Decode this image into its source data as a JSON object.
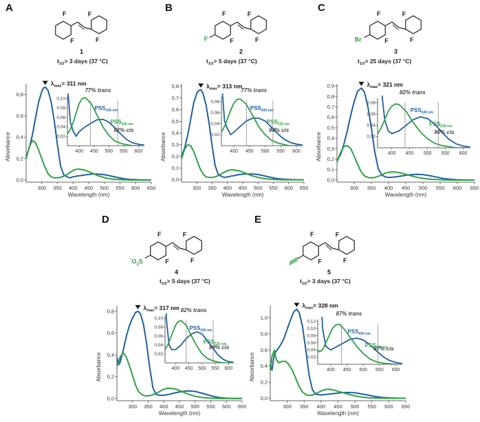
{
  "colors": {
    "blue": "#1f5f9e",
    "green": "#2ea043",
    "text": "#333333",
    "axis": "#333333"
  },
  "panels": [
    {
      "letter": "A",
      "number": "1",
      "halflife_prefix": "t",
      "halflife_sub": "1/2",
      "halflife_value": "> 3 days (37 °C)",
      "substituents": [],
      "lambda_label": "λ",
      "lambda_sub": "max",
      "lambda_value": "= 311 nm",
      "trans_text": "77% trans",
      "cis_text": "92% cis",
      "pss430": "PSS",
      "pss430_sub": "430 nm",
      "pss530": "PSS",
      "pss530_sub": "530 nm",
      "ylabel": "Absorbance",
      "xlabel": "Wavelength (nm)"
    },
    {
      "letter": "B",
      "number": "2",
      "halflife_prefix": "t",
      "halflife_sub": "1/2",
      "halflife_value": "> 5 days (37 °C)",
      "substituents": [
        "F"
      ],
      "lambda_label": "λ",
      "lambda_sub": "max",
      "lambda_value": "= 313 nm",
      "trans_text": "77% trans",
      "cis_text": "94% cis",
      "pss430": "PSS",
      "pss430_sub": "430 nm",
      "pss530": "PSS",
      "pss530_sub": "530 nm",
      "ylabel": "Absorbance",
      "xlabel": "Wavelength (nm)"
    },
    {
      "letter": "C",
      "number": "3",
      "halflife_prefix": "t",
      "halflife_sub": "1/2",
      "halflife_value": "> 25 days (37 °C)",
      "substituents": [
        "Br"
      ],
      "lambda_label": "λ",
      "lambda_sub": "max",
      "lambda_value": "= 321 nm",
      "trans_text": "82% trans",
      "cis_text": "90% cis",
      "pss430": "PSS",
      "pss430_sub": "430 nm",
      "pss530": "PSS",
      "pss530_sub": "530 nm",
      "ylabel": "Absorbance",
      "xlabel": "Wavelength (nm)"
    },
    {
      "letter": "D",
      "number": "4",
      "halflife_prefix": "t",
      "halflife_sub": "1/2",
      "halflife_value": "> 5 days (37 °C)",
      "substituents": [
        "-",
        "O",
        "3",
        "S"
      ],
      "lambda_label": "λ",
      "lambda_sub": "max",
      "lambda_value": "= 317 nm",
      "trans_text": "82% trans",
      "cis_text": "89% cis",
      "pss430": "PSS",
      "pss430_sub": "430 nm",
      "pss530": "PSS",
      "pss530_sub": "530 nm",
      "ylabel": "Absorbance",
      "xlabel": "Wavelength (nm)"
    },
    {
      "letter": "E",
      "number": "5",
      "halflife_prefix": "t",
      "halflife_sub": "1/2",
      "halflife_value": "> 3 days (37 °C)",
      "substituents": [],
      "lambda_label": "λ",
      "lambda_sub": "max",
      "lambda_value": "= 328 nm",
      "trans_text": "87% trans",
      "cis_text": "87% cis",
      "pss430": "PSS",
      "pss430_sub": "430 nm",
      "pss530": "PSS",
      "pss530_sub": "530 nm",
      "ylabel": "Absorbance",
      "xlabel": "Wavelength (nm)"
    }
  ],
  "chart_data": [
    {
      "type": "line",
      "panel": "A",
      "xlim": [
        250,
        650
      ],
      "ylim": [
        -0.02,
        0.9
      ],
      "xticks": [
        300,
        350,
        400,
        450,
        500,
        550,
        600,
        650
      ],
      "yticks": [
        0.0,
        0.2,
        0.4,
        0.6,
        0.8
      ],
      "ytick_labels": [
        "0,0",
        "0,2",
        "0,4",
        "0,6",
        "0,8"
      ],
      "series": [
        {
          "color": "blue",
          "x": [
            250,
            260,
            270,
            280,
            290,
            300,
            305,
            311,
            320,
            330,
            340,
            350,
            360,
            370,
            380,
            390,
            400,
            420,
            440,
            460,
            480,
            500,
            520,
            540,
            560,
            580,
            600,
            620,
            650
          ],
          "y": [
            0.22,
            0.3,
            0.42,
            0.58,
            0.73,
            0.83,
            0.86,
            0.87,
            0.84,
            0.73,
            0.55,
            0.33,
            0.13,
            0.05,
            0.03,
            0.02,
            0.03,
            0.04,
            0.048,
            0.055,
            0.056,
            0.05,
            0.038,
            0.025,
            0.013,
            0.006,
            0.003,
            0.001,
            0.0
          ]
        },
        {
          "color": "green",
          "x": [
            250,
            260,
            270,
            280,
            290,
            300,
            310,
            320,
            330,
            340,
            350,
            360,
            370,
            380,
            390,
            400,
            410,
            420,
            440,
            460,
            480,
            500,
            520,
            540,
            560,
            580,
            600,
            650
          ],
          "y": [
            0.2,
            0.31,
            0.37,
            0.35,
            0.28,
            0.2,
            0.12,
            0.06,
            0.03,
            0.02,
            0.02,
            0.025,
            0.035,
            0.05,
            0.07,
            0.09,
            0.1,
            0.102,
            0.09,
            0.065,
            0.04,
            0.022,
            0.01,
            0.005,
            0.002,
            0.0,
            0.0,
            0.0
          ]
        }
      ],
      "inset": {
        "xlim": [
          360,
          620
        ],
        "ylim": [
          0,
          0.105
        ],
        "xticks": [
          400,
          450,
          500,
          550,
          600
        ],
        "yticks": [
          0.02,
          0.04,
          0.06,
          0.08,
          0.1
        ],
        "ytick_labels": [
          "0,02",
          "0,04",
          "0,06",
          "0,08",
          "0,10"
        ],
        "marker_x": [
          438,
          530
        ]
      }
    },
    {
      "type": "line",
      "panel": "B",
      "xlim": [
        250,
        650
      ],
      "ylim": [
        -0.02,
        0.82
      ],
      "xticks": [
        300,
        350,
        400,
        450,
        500,
        550,
        600,
        650
      ],
      "yticks": [
        0.0,
        0.1,
        0.2,
        0.3,
        0.4,
        0.5,
        0.6,
        0.7,
        0.8
      ],
      "ytick_labels": [
        "0,0",
        "0,1",
        "0,2",
        "0,3",
        "0,4",
        "0,5",
        "0,6",
        "0,7",
        "0,8"
      ],
      "series": [
        {
          "color": "blue",
          "x": [
            250,
            260,
            270,
            280,
            290,
            300,
            305,
            313,
            320,
            330,
            340,
            350,
            360,
            370,
            380,
            390,
            400,
            420,
            440,
            460,
            480,
            500,
            520,
            540,
            560,
            580,
            600,
            620,
            650
          ],
          "y": [
            0.2,
            0.27,
            0.38,
            0.52,
            0.66,
            0.74,
            0.76,
            0.77,
            0.74,
            0.64,
            0.48,
            0.29,
            0.12,
            0.045,
            0.03,
            0.02,
            0.025,
            0.035,
            0.045,
            0.05,
            0.05,
            0.045,
            0.034,
            0.022,
            0.012,
            0.006,
            0.003,
            0.001,
            0.0
          ]
        },
        {
          "color": "green",
          "x": [
            250,
            260,
            270,
            280,
            290,
            300,
            310,
            320,
            330,
            340,
            350,
            360,
            370,
            380,
            390,
            400,
            410,
            420,
            440,
            460,
            480,
            500,
            520,
            540,
            560,
            580,
            600,
            650
          ],
          "y": [
            0.18,
            0.26,
            0.3,
            0.29,
            0.24,
            0.17,
            0.1,
            0.05,
            0.025,
            0.02,
            0.02,
            0.025,
            0.035,
            0.05,
            0.065,
            0.078,
            0.084,
            0.085,
            0.075,
            0.055,
            0.034,
            0.02,
            0.01,
            0.005,
            0.002,
            0.0,
            0.0,
            0.0
          ]
        }
      ],
      "inset": {
        "xlim": [
          360,
          620
        ],
        "ylim": [
          0,
          0.09
        ],
        "xticks": [
          400,
          450,
          500,
          550,
          600
        ],
        "yticks": [
          0.02,
          0.04,
          0.06,
          0.08
        ],
        "ytick_labels": [
          "0,02",
          "0,04",
          "0,06",
          "0,08"
        ],
        "marker_x": [
          440,
          525
        ]
      }
    },
    {
      "type": "line",
      "panel": "C",
      "xlim": [
        250,
        650
      ],
      "ylim": [
        -0.02,
        0.92
      ],
      "xticks": [
        300,
        350,
        400,
        450,
        500,
        550,
        600,
        650
      ],
      "yticks": [
        0.0,
        0.1,
        0.2,
        0.3,
        0.4,
        0.5,
        0.6,
        0.7,
        0.8,
        0.9
      ],
      "ytick_labels": [
        "0,0",
        "0,1",
        "0,2",
        "0,3",
        "0,4",
        "0,5",
        "0,6",
        "0,7",
        "0,8",
        "0,9"
      ],
      "series": [
        {
          "color": "blue",
          "x": [
            250,
            260,
            270,
            280,
            290,
            300,
            310,
            321,
            330,
            340,
            350,
            360,
            370,
            380,
            390,
            400,
            420,
            440,
            460,
            480,
            500,
            520,
            540,
            560,
            580,
            600,
            620,
            650
          ],
          "y": [
            0.18,
            0.24,
            0.34,
            0.47,
            0.62,
            0.75,
            0.85,
            0.88,
            0.84,
            0.7,
            0.5,
            0.27,
            0.11,
            0.05,
            0.03,
            0.025,
            0.03,
            0.04,
            0.05,
            0.055,
            0.052,
            0.042,
            0.028,
            0.015,
            0.007,
            0.003,
            0.001,
            0.0
          ]
        },
        {
          "color": "green",
          "x": [
            250,
            260,
            270,
            280,
            290,
            300,
            310,
            320,
            330,
            340,
            350,
            360,
            370,
            380,
            390,
            400,
            410,
            420,
            440,
            460,
            480,
            500,
            520,
            540,
            560,
            580,
            600,
            650
          ],
          "y": [
            0.17,
            0.26,
            0.32,
            0.33,
            0.3,
            0.23,
            0.15,
            0.08,
            0.04,
            0.025,
            0.02,
            0.025,
            0.035,
            0.05,
            0.065,
            0.074,
            0.078,
            0.077,
            0.065,
            0.045,
            0.028,
            0.016,
            0.008,
            0.004,
            0.002,
            0.0,
            0.0,
            0.0
          ]
        }
      ],
      "inset": {
        "xlim": [
          360,
          620
        ],
        "ylim": [
          0,
          0.088
        ],
        "xticks": [
          400,
          450,
          500,
          550,
          600
        ],
        "yticks": [
          0.02,
          0.04,
          0.06,
          0.08
        ],
        "ytick_labels": [
          "0,02",
          "0,04",
          "0,06",
          "0,08"
        ],
        "marker_x": [
          437,
          530
        ]
      }
    },
    {
      "type": "line",
      "panel": "D",
      "xlim": [
        250,
        650
      ],
      "ylim": [
        -0.02,
        0.85
      ],
      "xticks": [
        300,
        350,
        400,
        450,
        500,
        550,
        600,
        650
      ],
      "yticks": [
        0.0,
        0.2,
        0.4,
        0.6,
        0.8
      ],
      "ytick_labels": [
        "0,0",
        "0,2",
        "0,4",
        "0,6",
        "0,8"
      ],
      "series": [
        {
          "color": "blue",
          "x": [
            250,
            255,
            260,
            270,
            280,
            290,
            300,
            310,
            317,
            325,
            335,
            345,
            355,
            365,
            375,
            385,
            400,
            420,
            440,
            460,
            480,
            500,
            520,
            540,
            560,
            580,
            600,
            620,
            650
          ],
          "y": [
            0.38,
            0.31,
            0.33,
            0.44,
            0.57,
            0.67,
            0.74,
            0.79,
            0.8,
            0.78,
            0.68,
            0.5,
            0.28,
            0.1,
            0.04,
            0.03,
            0.03,
            0.04,
            0.055,
            0.065,
            0.07,
            0.065,
            0.05,
            0.034,
            0.018,
            0.008,
            0.003,
            0.001,
            0.0
          ]
        },
        {
          "color": "green",
          "x": [
            250,
            255,
            260,
            270,
            280,
            290,
            300,
            310,
            320,
            330,
            340,
            350,
            360,
            370,
            380,
            390,
            400,
            410,
            420,
            440,
            460,
            480,
            500,
            520,
            540,
            560,
            580,
            600,
            650
          ],
          "y": [
            0.3,
            0.33,
            0.38,
            0.42,
            0.38,
            0.3,
            0.21,
            0.12,
            0.06,
            0.035,
            0.025,
            0.025,
            0.03,
            0.04,
            0.055,
            0.07,
            0.085,
            0.093,
            0.095,
            0.085,
            0.06,
            0.038,
            0.02,
            0.01,
            0.005,
            0.002,
            0.0,
            0.0,
            0.0
          ]
        }
      ],
      "inset": {
        "xlim": [
          360,
          620
        ],
        "ylim": [
          0,
          0.105
        ],
        "xticks": [
          400,
          450,
          500,
          550,
          600
        ],
        "yticks": [
          0.02,
          0.04,
          0.06,
          0.08,
          0.1
        ],
        "ytick_labels": [
          "0,02",
          "0,04",
          "0,06",
          "0,08",
          "0,10"
        ],
        "marker_x": [
          440,
          542
        ]
      }
    },
    {
      "type": "line",
      "panel": "E",
      "xlim": [
        250,
        650
      ],
      "ylim": [
        -0.03,
        1.15
      ],
      "xticks": [
        300,
        350,
        400,
        450,
        500,
        550,
        600,
        650
      ],
      "yticks": [
        0.0,
        0.2,
        0.4,
        0.6,
        0.8,
        1.0
      ],
      "ytick_labels": [
        "0,0",
        "0,2",
        "0,4",
        "0,6",
        "0,8",
        "1,0"
      ],
      "series": [
        {
          "color": "blue",
          "x": [
            250,
            255,
            262,
            270,
            280,
            290,
            300,
            310,
            320,
            328,
            335,
            345,
            355,
            365,
            375,
            385,
            400,
            420,
            440,
            460,
            480,
            500,
            520,
            540,
            560,
            580,
            600,
            620,
            650
          ],
          "y": [
            0.42,
            0.35,
            0.55,
            0.6,
            0.66,
            0.74,
            0.86,
            0.98,
            1.08,
            1.11,
            1.07,
            0.9,
            0.6,
            0.28,
            0.1,
            0.05,
            0.04,
            0.05,
            0.06,
            0.07,
            0.073,
            0.068,
            0.055,
            0.038,
            0.022,
            0.011,
            0.005,
            0.002,
            0.0
          ]
        },
        {
          "color": "green",
          "x": [
            250,
            255,
            262,
            268,
            275,
            285,
            295,
            305,
            315,
            325,
            335,
            345,
            355,
            365,
            375,
            385,
            395,
            405,
            415,
            425,
            440,
            460,
            480,
            500,
            520,
            540,
            560,
            600,
            650
          ],
          "y": [
            0.35,
            0.52,
            0.6,
            0.48,
            0.44,
            0.46,
            0.46,
            0.42,
            0.35,
            0.25,
            0.15,
            0.08,
            0.045,
            0.035,
            0.04,
            0.06,
            0.08,
            0.1,
            0.11,
            0.112,
            0.1,
            0.075,
            0.05,
            0.03,
            0.015,
            0.007,
            0.003,
            0.0,
            0.0
          ]
        }
      ],
      "inset": {
        "xlim": [
          360,
          620
        ],
        "ylim": [
          0,
          0.125
        ],
        "xticks": [
          400,
          450,
          500,
          550,
          600
        ],
        "yticks": [
          0.02,
          0.04,
          0.06,
          0.08,
          0.1,
          0.12
        ],
        "ytick_labels": [
          "0,02",
          "0,04",
          "0,06",
          "0,08",
          "0,10",
          "0,12"
        ],
        "marker_x": [
          433,
          545
        ]
      }
    }
  ]
}
